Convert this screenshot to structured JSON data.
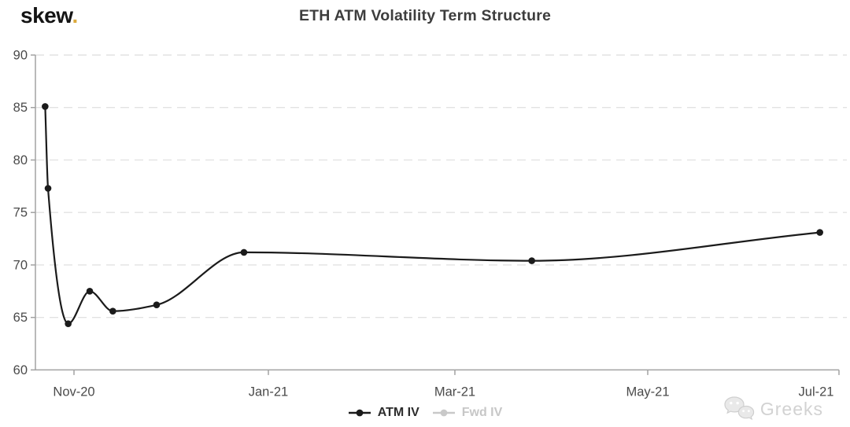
{
  "brand": {
    "logo_text": "skew",
    "logo_dot": ".",
    "logo_dot_color": "#dcaa3c"
  },
  "header": {
    "title": "ETH ATM Volatility Term Structure"
  },
  "chart_data": {
    "type": "line",
    "title": "ETH ATM Volatility Term Structure",
    "xlabel": "",
    "ylabel": "",
    "ylim": [
      60,
      90
    ],
    "grid": {
      "horizontal": "dashed",
      "vertical": "none"
    },
    "legend_position": "bottom-center",
    "x_axis": {
      "type": "time",
      "ticks": [
        {
          "label": "Nov-20",
          "pos": 0.048
        },
        {
          "label": "Jan-21",
          "pos": 0.2899
        },
        {
          "label": "Mar-21",
          "pos": 0.522
        },
        {
          "label": "May-21",
          "pos": 0.762
        },
        {
          "label": "Jul-21",
          "pos": 1.0,
          "label_pos": 0.9716
        }
      ]
    },
    "y_axis": {
      "min": 60,
      "max": 90,
      "ticks": [
        60,
        65,
        70,
        75,
        80,
        85,
        90
      ]
    },
    "series": [
      {
        "name": "ATM IV",
        "color": "#1b1b1b",
        "visible": true,
        "points": [
          {
            "x": 0.0121,
            "date_est": "2020-10-23",
            "iv": 85.1
          },
          {
            "x": 0.0157,
            "date_est": "2020-10-24",
            "iv": 77.3
          },
          {
            "x": 0.0408,
            "date_est": "2020-10-30",
            "iv": 64.4
          },
          {
            "x": 0.0676,
            "date_est": "2020-11-06",
            "iv": 67.5
          },
          {
            "x": 0.0963,
            "date_est": "2020-11-13",
            "iv": 65.6
          },
          {
            "x": 0.1508,
            "date_est": "2020-11-27",
            "iv": 66.2
          },
          {
            "x": 0.2595,
            "date_est": "2020-12-25",
            "iv": 71.2
          },
          {
            "x": 0.6177,
            "date_est": "2021-03-26",
            "iv": 70.4
          },
          {
            "x": 0.9762,
            "date_est": "2021-06-25",
            "iv": 73.1
          }
        ]
      },
      {
        "name": "Fwd IV",
        "color": "#c9c9c9",
        "visible": false,
        "points": []
      }
    ]
  },
  "legend": {
    "items": [
      {
        "label": "ATM IV",
        "marker_color": "#1b1b1b",
        "text_color": "#2d2d2d",
        "enabled": true
      },
      {
        "label": "Fwd IV",
        "marker_color": "#c9c9c9",
        "text_color": "#c7c7c7",
        "enabled": false
      }
    ]
  },
  "watermark": {
    "icon": "wechat-icon",
    "text": "Greeks"
  },
  "colors": {
    "background": "#ffffff",
    "title": "#3d3d3d",
    "logo_dot": "#dcaa3c",
    "axis_line": "#a2a2a2",
    "axis_text": "#4a4a4a",
    "grid": "#e2e2e2",
    "series_line": "#1b1b1b"
  }
}
